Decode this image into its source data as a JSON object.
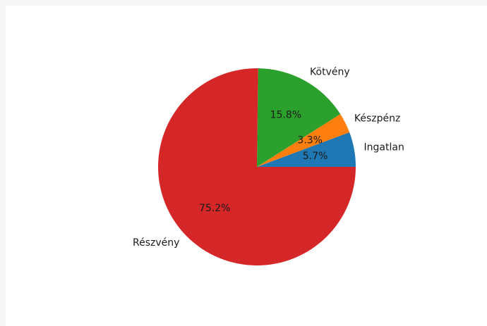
{
  "chart_data": {
    "type": "pie",
    "title": "",
    "start_angle_deg": 0,
    "direction": "counterclockwise",
    "slices": [
      {
        "label": "Ingatlan",
        "value": 5.7,
        "pct_label": "5.7%",
        "color": "#1f77b4"
      },
      {
        "label": "Készpénz",
        "value": 3.3,
        "pct_label": "3.3%",
        "color": "#ff7f0e"
      },
      {
        "label": "Kötvény",
        "value": 15.8,
        "pct_label": "15.8%",
        "color": "#2ca02c"
      },
      {
        "label": "Részvény",
        "value": 75.2,
        "pct_label": "75.2%",
        "color": "#d62728"
      }
    ]
  }
}
